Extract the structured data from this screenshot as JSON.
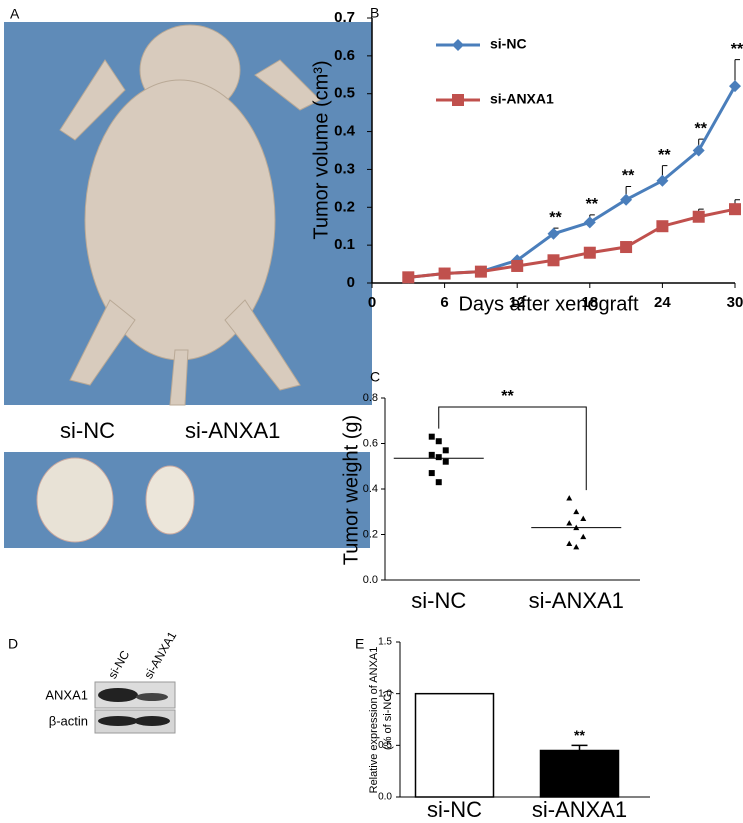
{
  "figure": {
    "panel_a": "A",
    "panel_d": "D",
    "photo_labels": [
      "si-NC",
      "si-ANXA1"
    ],
    "blot_lanes": [
      "si-NC",
      "si-ANXA1"
    ],
    "blot_rows": [
      "ANXA1",
      "β-actin"
    ]
  },
  "chart_data": [
    {
      "type": "line",
      "panel": "B",
      "x_label": "Days after xenograft",
      "y_label": "Tumor volume (cm³)",
      "x": [
        3,
        6,
        9,
        12,
        15,
        18,
        21,
        24,
        27,
        30
      ],
      "series": [
        {
          "name": "si-NC",
          "color": "#4a7ebb",
          "marker": "diamond",
          "values": [
            0.015,
            0.025,
            0.03,
            0.06,
            0.13,
            0.16,
            0.22,
            0.27,
            0.35,
            0.52
          ],
          "errors": [
            null,
            null,
            null,
            null,
            0.015,
            0.02,
            0.035,
            0.04,
            0.03,
            0.07
          ]
        },
        {
          "name": "si-ANXA1",
          "color": "#c0504d",
          "marker": "square",
          "values": [
            0.015,
            0.025,
            0.03,
            0.045,
            0.06,
            0.08,
            0.095,
            0.15,
            0.175,
            0.195
          ],
          "errors": [
            null,
            null,
            null,
            null,
            null,
            null,
            null,
            null,
            0.02,
            0.025
          ]
        }
      ],
      "annotations": [
        {
          "text": "**",
          "x": 15
        },
        {
          "text": "**",
          "x": 18
        },
        {
          "text": "**",
          "x": 21
        },
        {
          "text": "**",
          "x": 24
        },
        {
          "text": "**",
          "x": 27
        },
        {
          "text": "**",
          "x": 30
        }
      ],
      "xlim": [
        0,
        30
      ],
      "xticks": [
        0,
        6,
        12,
        18,
        24,
        30
      ],
      "ylim": [
        0,
        0.7
      ],
      "yticks": [
        0,
        0.1,
        0.2,
        0.3,
        0.4,
        0.5,
        0.6,
        0.7
      ]
    },
    {
      "type": "strip",
      "panel": "C",
      "y_label": "Tumor weight (g)",
      "categories": [
        "si-NC",
        "si-ANXA1"
      ],
      "markers": [
        "square",
        "triangle"
      ],
      "groups": [
        [
          0.63,
          0.61,
          0.57,
          0.55,
          0.54,
          0.52,
          0.47,
          0.43
        ],
        [
          0.36,
          0.3,
          0.27,
          0.25,
          0.23,
          0.19,
          0.16,
          0.145
        ]
      ],
      "center_lines": [
        0.535,
        0.23
      ],
      "significance": "**",
      "ylim": [
        0,
        0.8
      ],
      "yticks": [
        {
          "value": 0,
          "label": "0.0"
        },
        0.2,
        0.4,
        0.6,
        0.8
      ]
    },
    {
      "type": "bar",
      "panel": "E",
      "y_label": [
        "Relative expression of ANXA1",
        "(% of si-NC)"
      ],
      "categories": [
        "si-NC",
        "si-ANXA1"
      ],
      "values": [
        1.0,
        0.45
      ],
      "errors": [
        null,
        0.05
      ],
      "colors": [
        "#ffffff",
        "#000000"
      ],
      "annotations": [
        null,
        "**"
      ],
      "ylim": [
        0,
        1.5
      ],
      "yticks": [
        {
          "value": 0,
          "label": "0.0"
        },
        0.5,
        {
          "value": 1,
          "label": "1.0"
        },
        1.5
      ]
    }
  ]
}
